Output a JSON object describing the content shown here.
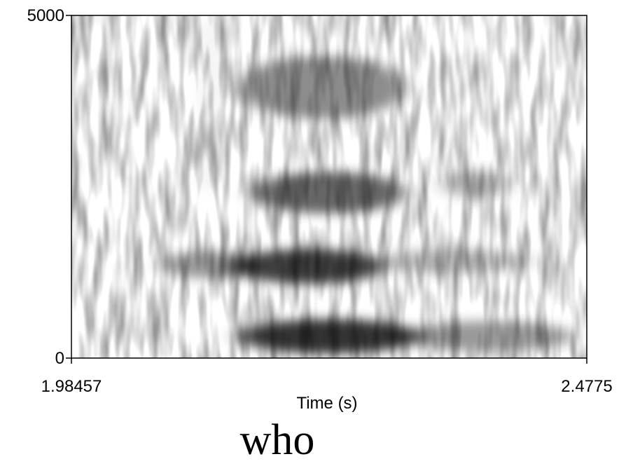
{
  "chart_data": {
    "type": "spectrogram",
    "x_label": "Time (s)",
    "caption": "who",
    "xlim": [
      1.98457,
      2.4775
    ],
    "xticks": [
      1.98457,
      2.4775
    ],
    "ylim": [
      0,
      5000
    ],
    "yticks": [
      0,
      5000
    ]
  }
}
